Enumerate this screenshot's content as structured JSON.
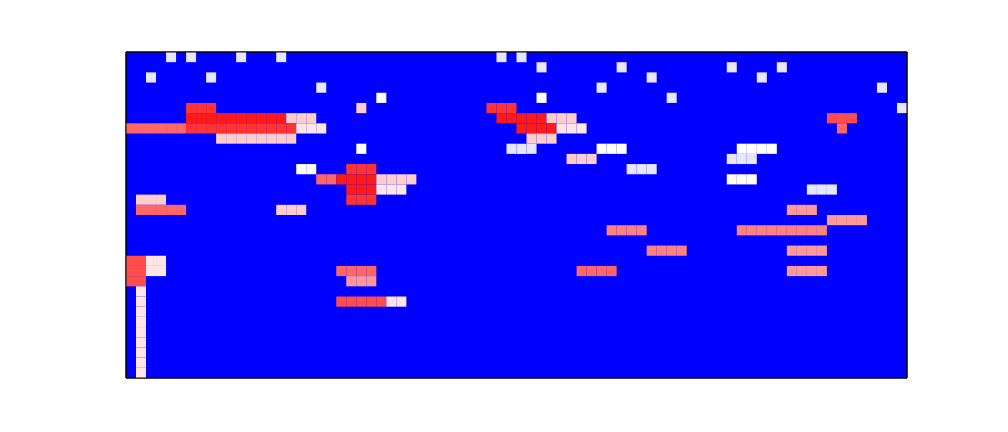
{
  "chart_data": {
    "type": "heatmap",
    "xlim": [
      0,
      78
    ],
    "ylim": [
      0,
      32
    ],
    "tick_labels": false,
    "value_range": [
      0,
      1
    ],
    "cells": [
      [
        4,
        31,
        0.45
      ],
      [
        6,
        31,
        0.45
      ],
      [
        11,
        31,
        0.45
      ],
      [
        15,
        31,
        0.45
      ],
      [
        37,
        31,
        0.45
      ],
      [
        39,
        31,
        0.45
      ],
      [
        41,
        30,
        0.45
      ],
      [
        49,
        30,
        0.45
      ],
      [
        60,
        30,
        0.45
      ],
      [
        65,
        30,
        0.45
      ],
      [
        2,
        29,
        0.45
      ],
      [
        8,
        29,
        0.45
      ],
      [
        52,
        29,
        0.45
      ],
      [
        63,
        29,
        0.45
      ],
      [
        19,
        28,
        0.45
      ],
      [
        47,
        28,
        0.45
      ],
      [
        75,
        28,
        0.45
      ],
      [
        25,
        27,
        0.5
      ],
      [
        41,
        27,
        0.5
      ],
      [
        54,
        27,
        0.45
      ],
      [
        23,
        26,
        0.6
      ],
      [
        77,
        26,
        0.45
      ],
      [
        6,
        26,
        0.9
      ],
      [
        7,
        26,
        0.9
      ],
      [
        8,
        26,
        0.9
      ],
      [
        36,
        26,
        0.9
      ],
      [
        37,
        26,
        0.9
      ],
      [
        38,
        26,
        0.9
      ],
      [
        6,
        25,
        0.95
      ],
      [
        7,
        25,
        0.95
      ],
      [
        8,
        25,
        0.95
      ],
      [
        9,
        25,
        0.95
      ],
      [
        10,
        25,
        0.95
      ],
      [
        11,
        25,
        0.95
      ],
      [
        12,
        25,
        0.95
      ],
      [
        13,
        25,
        0.95
      ],
      [
        14,
        25,
        0.95
      ],
      [
        15,
        25,
        0.95
      ],
      [
        16,
        25,
        0.6
      ],
      [
        17,
        25,
        0.6
      ],
      [
        18,
        25,
        0.6
      ],
      [
        37,
        25,
        0.95
      ],
      [
        38,
        25,
        0.95
      ],
      [
        39,
        25,
        0.95
      ],
      [
        40,
        25,
        0.95
      ],
      [
        41,
        25,
        0.95
      ],
      [
        42,
        25,
        0.6
      ],
      [
        43,
        25,
        0.6
      ],
      [
        44,
        25,
        0.6
      ],
      [
        70,
        25,
        0.85
      ],
      [
        71,
        25,
        0.85
      ],
      [
        72,
        25,
        0.85
      ],
      [
        0,
        24,
        0.8
      ],
      [
        1,
        24,
        0.8
      ],
      [
        2,
        24,
        0.8
      ],
      [
        3,
        24,
        0.8
      ],
      [
        4,
        24,
        0.8
      ],
      [
        5,
        24,
        0.8
      ],
      [
        6,
        24,
        0.9
      ],
      [
        7,
        24,
        0.9
      ],
      [
        8,
        24,
        0.9
      ],
      [
        9,
        24,
        0.9
      ],
      [
        10,
        24,
        0.9
      ],
      [
        11,
        24,
        0.9
      ],
      [
        12,
        24,
        0.9
      ],
      [
        13,
        24,
        0.9
      ],
      [
        14,
        24,
        0.9
      ],
      [
        15,
        24,
        0.9
      ],
      [
        16,
        24,
        0.9
      ],
      [
        17,
        24,
        0.55
      ],
      [
        18,
        24,
        0.55
      ],
      [
        19,
        24,
        0.55
      ],
      [
        39,
        24,
        0.95
      ],
      [
        40,
        24,
        0.95
      ],
      [
        41,
        24,
        0.95
      ],
      [
        42,
        24,
        0.95
      ],
      [
        43,
        24,
        0.55
      ],
      [
        44,
        24,
        0.55
      ],
      [
        45,
        24,
        0.55
      ],
      [
        71,
        24,
        0.8
      ],
      [
        9,
        23,
        0.6
      ],
      [
        10,
        23,
        0.6
      ],
      [
        11,
        23,
        0.6
      ],
      [
        12,
        23,
        0.6
      ],
      [
        13,
        23,
        0.6
      ],
      [
        14,
        23,
        0.6
      ],
      [
        15,
        23,
        0.6
      ],
      [
        16,
        23,
        0.6
      ],
      [
        40,
        23,
        0.6
      ],
      [
        41,
        23,
        0.6
      ],
      [
        42,
        23,
        0.6
      ],
      [
        23,
        22,
        0.5
      ],
      [
        38,
        22,
        0.45
      ],
      [
        39,
        22,
        0.45
      ],
      [
        40,
        22,
        0.45
      ],
      [
        47,
        22,
        0.5
      ],
      [
        48,
        22,
        0.5
      ],
      [
        49,
        22,
        0.5
      ],
      [
        61,
        22,
        0.5
      ],
      [
        62,
        22,
        0.5
      ],
      [
        63,
        22,
        0.5
      ],
      [
        64,
        22,
        0.5
      ],
      [
        44,
        21,
        0.6
      ],
      [
        45,
        21,
        0.6
      ],
      [
        46,
        21,
        0.6
      ],
      [
        60,
        21,
        0.45
      ],
      [
        61,
        21,
        0.45
      ],
      [
        62,
        21,
        0.45
      ],
      [
        17,
        20,
        0.5
      ],
      [
        18,
        20,
        0.5
      ],
      [
        22,
        20,
        0.9
      ],
      [
        23,
        20,
        0.9
      ],
      [
        24,
        20,
        0.9
      ],
      [
        50,
        20,
        0.45
      ],
      [
        51,
        20,
        0.45
      ],
      [
        52,
        20,
        0.45
      ],
      [
        19,
        19,
        0.8
      ],
      [
        20,
        19,
        0.8
      ],
      [
        21,
        19,
        0.95
      ],
      [
        22,
        19,
        0.95
      ],
      [
        23,
        19,
        0.95
      ],
      [
        24,
        19,
        0.95
      ],
      [
        25,
        19,
        0.6
      ],
      [
        26,
        19,
        0.6
      ],
      [
        27,
        19,
        0.6
      ],
      [
        28,
        19,
        0.6
      ],
      [
        60,
        19,
        0.5
      ],
      [
        61,
        19,
        0.5
      ],
      [
        62,
        19,
        0.5
      ],
      [
        22,
        18,
        0.95
      ],
      [
        23,
        18,
        0.95
      ],
      [
        24,
        18,
        0.95
      ],
      [
        25,
        18,
        0.55
      ],
      [
        26,
        18,
        0.55
      ],
      [
        27,
        18,
        0.55
      ],
      [
        68,
        18,
        0.45
      ],
      [
        69,
        18,
        0.45
      ],
      [
        70,
        18,
        0.45
      ],
      [
        22,
        17,
        0.9
      ],
      [
        23,
        17,
        0.9
      ],
      [
        24,
        17,
        0.9
      ],
      [
        1,
        17,
        0.6
      ],
      [
        2,
        17,
        0.6
      ],
      [
        3,
        17,
        0.6
      ],
      [
        1,
        16,
        0.8
      ],
      [
        2,
        16,
        0.8
      ],
      [
        3,
        16,
        0.8
      ],
      [
        4,
        16,
        0.8
      ],
      [
        5,
        16,
        0.8
      ],
      [
        15,
        16,
        0.6
      ],
      [
        16,
        16,
        0.6
      ],
      [
        17,
        16,
        0.6
      ],
      [
        66,
        16,
        0.7
      ],
      [
        67,
        16,
        0.7
      ],
      [
        68,
        16,
        0.7
      ],
      [
        70,
        15,
        0.7
      ],
      [
        71,
        15,
        0.7
      ],
      [
        72,
        15,
        0.7
      ],
      [
        73,
        15,
        0.7
      ],
      [
        48,
        14,
        0.75
      ],
      [
        49,
        14,
        0.75
      ],
      [
        50,
        14,
        0.75
      ],
      [
        51,
        14,
        0.75
      ],
      [
        61,
        14,
        0.75
      ],
      [
        62,
        14,
        0.75
      ],
      [
        63,
        14,
        0.75
      ],
      [
        64,
        14,
        0.75
      ],
      [
        65,
        14,
        0.75
      ],
      [
        66,
        14,
        0.75
      ],
      [
        67,
        14,
        0.75
      ],
      [
        68,
        14,
        0.75
      ],
      [
        69,
        14,
        0.75
      ],
      [
        52,
        12,
        0.75
      ],
      [
        53,
        12,
        0.75
      ],
      [
        54,
        12,
        0.75
      ],
      [
        55,
        12,
        0.75
      ],
      [
        66,
        12,
        0.7
      ],
      [
        67,
        12,
        0.7
      ],
      [
        68,
        12,
        0.7
      ],
      [
        69,
        12,
        0.7
      ],
      [
        0,
        11,
        0.85
      ],
      [
        1,
        11,
        0.85
      ],
      [
        2,
        11,
        0.55
      ],
      [
        3,
        11,
        0.55
      ],
      [
        0,
        10,
        0.85
      ],
      [
        1,
        10,
        0.85
      ],
      [
        2,
        10,
        0.55
      ],
      [
        3,
        10,
        0.55
      ],
      [
        21,
        10,
        0.8
      ],
      [
        22,
        10,
        0.8
      ],
      [
        23,
        10,
        0.8
      ],
      [
        24,
        10,
        0.8
      ],
      [
        45,
        10,
        0.8
      ],
      [
        46,
        10,
        0.8
      ],
      [
        47,
        10,
        0.8
      ],
      [
        48,
        10,
        0.8
      ],
      [
        66,
        10,
        0.7
      ],
      [
        67,
        10,
        0.7
      ],
      [
        68,
        10,
        0.7
      ],
      [
        69,
        10,
        0.7
      ],
      [
        0,
        9,
        0.85
      ],
      [
        1,
        9,
        0.85
      ],
      [
        22,
        9,
        0.7
      ],
      [
        23,
        9,
        0.7
      ],
      [
        24,
        9,
        0.7
      ],
      [
        1,
        8,
        0.55
      ],
      [
        21,
        7,
        0.85
      ],
      [
        22,
        7,
        0.85
      ],
      [
        23,
        7,
        0.85
      ],
      [
        24,
        7,
        0.85
      ],
      [
        25,
        7,
        0.85
      ],
      [
        26,
        7,
        0.55
      ],
      [
        27,
        7,
        0.55
      ],
      [
        1,
        7,
        0.55
      ],
      [
        1,
        6,
        0.55
      ],
      [
        1,
        5,
        0.55
      ],
      [
        1,
        4,
        0.55
      ],
      [
        1,
        3,
        0.55
      ],
      [
        1,
        2,
        0.55
      ],
      [
        1,
        1,
        0.55
      ],
      [
        1,
        0,
        0.55
      ]
    ]
  }
}
